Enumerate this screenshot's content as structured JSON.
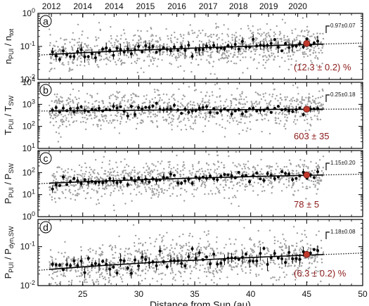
{
  "chart_data": {
    "type": "scatter",
    "xlabel": "Distance from Sun (au)",
    "xlim": [
      21,
      50
    ],
    "x_ticks": [
      25,
      30,
      35,
      40,
      45,
      50
    ],
    "top_axis_ticks": [
      {
        "x": 22.2,
        "label": "2012"
      },
      {
        "x": 25.0,
        "label": "2014"
      },
      {
        "x": 27.8,
        "label": "2014"
      },
      {
        "x": 30.6,
        "label": "2015"
      },
      {
        "x": 33.4,
        "label": "2016"
      },
      {
        "x": 36.2,
        "label": "2017"
      },
      {
        "x": 38.9,
        "label": "2018"
      },
      {
        "x": 41.6,
        "label": "2019"
      },
      {
        "x": 44.2,
        "label": "2020"
      }
    ],
    "panels": [
      {
        "letter": "a",
        "ylabel_main": "n",
        "ylabel_sub": "PUI",
        "ylabel_sep": " / n",
        "ylabel_sub2": "tot",
        "ylog": true,
        "ylim": [
          0.01,
          1
        ],
        "yticks": [
          {
            "v": 0.01,
            "m": "10",
            "e": "-2"
          },
          {
            "v": 0.1,
            "m": "10",
            "e": "-1"
          },
          {
            "v": 1,
            "m": "10",
            "e": "0"
          }
        ],
        "exponent_label": "0.97±0.07",
        "value_label": "(12.3 ± 0.2) %",
        "highlight": {
          "x": 45.0,
          "y": 0.123
        },
        "fit": {
          "a": 0.057,
          "b": 0.97,
          "x0": 22
        },
        "scatter": 0.28,
        "binned_noise": 0.16
      },
      {
        "letter": "b",
        "ylabel_main": "T",
        "ylabel_sub": "PUI",
        "ylabel_sep": " / T",
        "ylabel_sub2": "SW",
        "ylog": true,
        "ylim": [
          10,
          10000
        ],
        "yticks": [
          {
            "v": 10,
            "m": "10",
            "e": "1"
          },
          {
            "v": 100,
            "m": "10",
            "e": "2"
          },
          {
            "v": 1000,
            "m": "10",
            "e": "3"
          },
          {
            "v": 10000,
            "m": "10",
            "e": "4"
          }
        ],
        "exponent_label": "0.25±0.18",
        "value_label": "603 ± 35",
        "highlight": {
          "x": 45.0,
          "y": 603
        },
        "fit": {
          "a": 500,
          "b": 0.25,
          "x0": 22
        },
        "scatter": 0.42,
        "binned_noise": 0.2
      },
      {
        "letter": "c",
        "ylabel_main": "P",
        "ylabel_sub": "PUI",
        "ylabel_sep": " / P",
        "ylabel_sub2": "SW",
        "ylog": true,
        "ylim": [
          1,
          1000
        ],
        "yticks": [
          {
            "v": 1,
            "m": "10",
            "e": "0"
          },
          {
            "v": 10,
            "m": "10",
            "e": "1"
          },
          {
            "v": 100,
            "m": "10",
            "e": "2"
          }
        ],
        "exponent_label": "1.15±0.20",
        "value_label": "78 ± 5",
        "highlight": {
          "x": 45.0,
          "y": 78
        },
        "fit": {
          "a": 33,
          "b": 1.15,
          "x0": 22
        },
        "scatter": 0.4,
        "binned_noise": 0.22
      },
      {
        "letter": "d",
        "ylabel_main": "P",
        "ylabel_sub": "PUI",
        "ylabel_sep": " / P",
        "ylabel_sub2": "dyn,SW",
        "ylog": true,
        "ylim": [
          0.01,
          0.5
        ],
        "yticks": [
          {
            "v": 0.01,
            "m": "10",
            "e": "-2"
          },
          {
            "v": 0.1,
            "m": "10",
            "e": "-1"
          }
        ],
        "exponent_label": "1.18±0.08",
        "value_label": "(6.3 ± 0.2) %",
        "highlight": {
          "x": 45.0,
          "y": 0.063
        },
        "fit": {
          "a": 0.026,
          "b": 1.18,
          "x0": 22
        },
        "scatter": 0.3,
        "binned_noise": 0.17
      }
    ],
    "x_range": [
      22,
      46.5
    ],
    "fit_extension": [
      46.5,
      50
    ],
    "grid": false,
    "colors": {
      "raw_points": "#9e9e9e",
      "binned_points": "#000000",
      "fit_line": "#000000",
      "highlight": "#c0392b",
      "value_label": "#8b1a1a"
    }
  }
}
